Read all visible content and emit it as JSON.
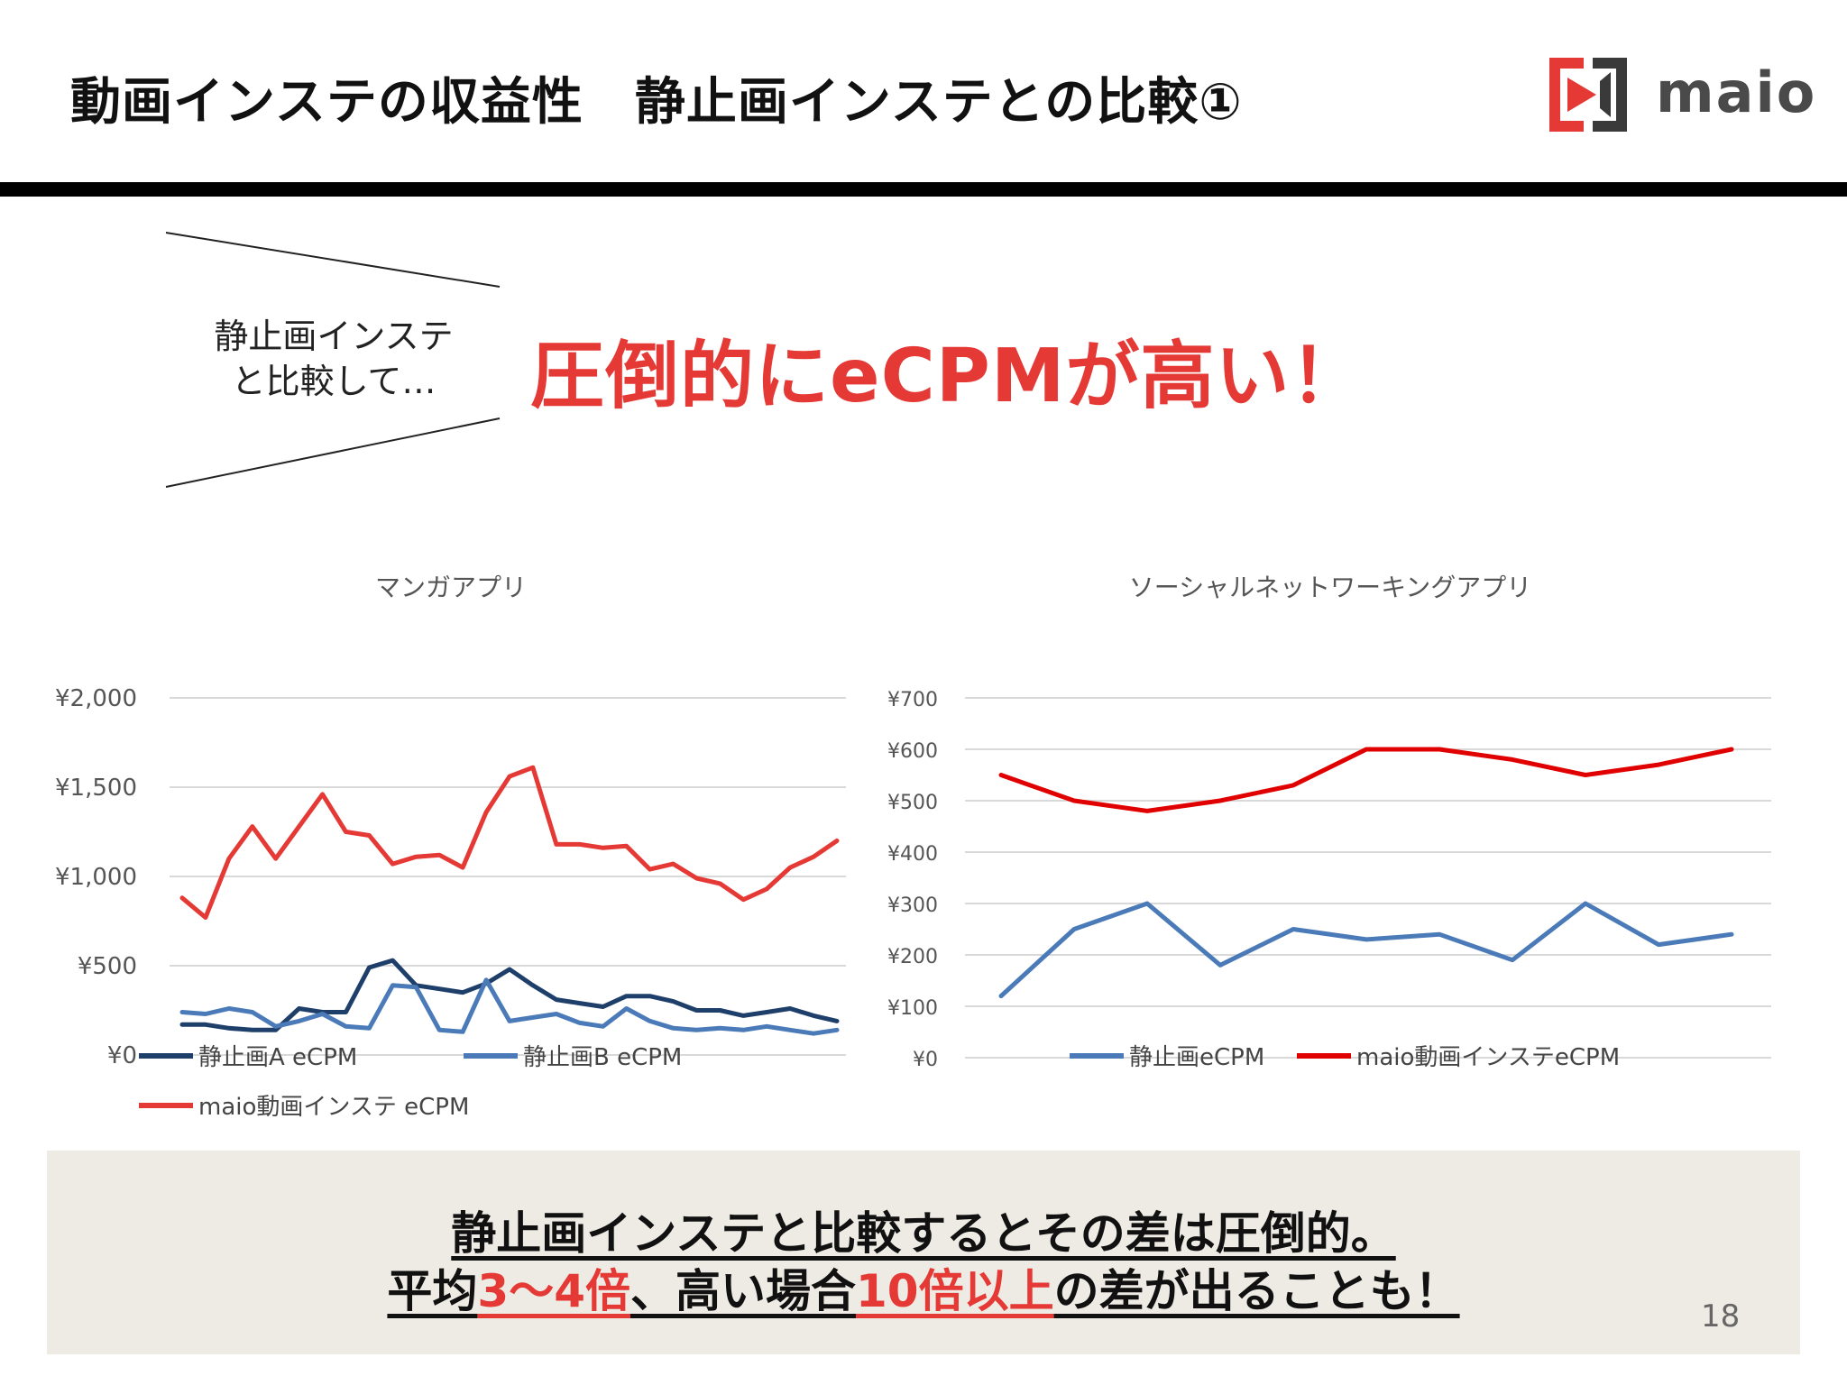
{
  "header": {
    "title": "動画インステの収益性　静止画インステとの比較①",
    "logo_text": "maio"
  },
  "callout": {
    "line1": "静止画インステ",
    "line2": "と比較して…",
    "headline": "圧倒的にeCPMが高い！"
  },
  "colors": {
    "accent_red": "#e53935",
    "dark_blue": "#1f3f6b",
    "light_blue": "#4a7ab8",
    "bright_red": "#e00000"
  },
  "chart_data": [
    {
      "type": "line",
      "title": "マンガアプリ",
      "ylim": [
        0,
        2000
      ],
      "yticks": [
        "¥0",
        "¥500",
        "¥1,000",
        "¥1,500",
        "¥2,000"
      ],
      "ytick_values": [
        0,
        500,
        1000,
        1500,
        2000
      ],
      "grid": true,
      "legend_position": "bottom",
      "series": [
        {
          "name": "静止画A eCPM",
          "color": "#1f3f6b",
          "values": [
            170,
            170,
            150,
            140,
            140,
            260,
            240,
            240,
            490,
            530,
            390,
            370,
            350,
            400,
            480,
            390,
            310,
            290,
            270,
            330,
            330,
            300,
            250,
            250,
            220,
            240,
            260,
            220,
            190
          ]
        },
        {
          "name": "静止画B eCPM",
          "color": "#4a7ab8",
          "values": [
            240,
            230,
            260,
            240,
            160,
            190,
            230,
            160,
            150,
            390,
            380,
            140,
            130,
            420,
            190,
            210,
            230,
            180,
            160,
            260,
            190,
            150,
            140,
            150,
            140,
            160,
            140,
            120,
            140
          ]
        },
        {
          "name": "maio動画インステ eCPM",
          "color": "#e53935",
          "values": [
            880,
            770,
            1100,
            1280,
            1100,
            1280,
            1460,
            1250,
            1230,
            1070,
            1110,
            1120,
            1050,
            1360,
            1560,
            1610,
            1180,
            1180,
            1160,
            1170,
            1040,
            1070,
            990,
            960,
            870,
            930,
            1050,
            1110,
            1200
          ]
        }
      ]
    },
    {
      "type": "line",
      "title": "ソーシャルネットワーキングアプリ",
      "ylim": [
        0,
        700
      ],
      "yticks": [
        "¥0",
        "¥100",
        "¥200",
        "¥300",
        "¥400",
        "¥500",
        "¥600",
        "¥700"
      ],
      "ytick_values": [
        0,
        100,
        200,
        300,
        400,
        500,
        600,
        700
      ],
      "grid": true,
      "legend_position": "bottom",
      "series": [
        {
          "name": "静止画eCPM",
          "color": "#4a7ab8",
          "values": [
            120,
            250,
            300,
            180,
            250,
            230,
            240,
            190,
            300,
            220,
            240
          ]
        },
        {
          "name": "maio動画インステeCPM",
          "color": "#e00000",
          "values": [
            550,
            500,
            480,
            500,
            530,
            600,
            600,
            580,
            550,
            570,
            600
          ]
        }
      ]
    }
  ],
  "summary": {
    "line1": "静止画インステと比較するとその差は圧倒的。",
    "line2_a": "平均",
    "line2_b": "3～4倍",
    "line2_c": "、高い場合",
    "line2_d": "10倍以上",
    "line2_e": "の差が出ることも！"
  },
  "page_number": "18"
}
